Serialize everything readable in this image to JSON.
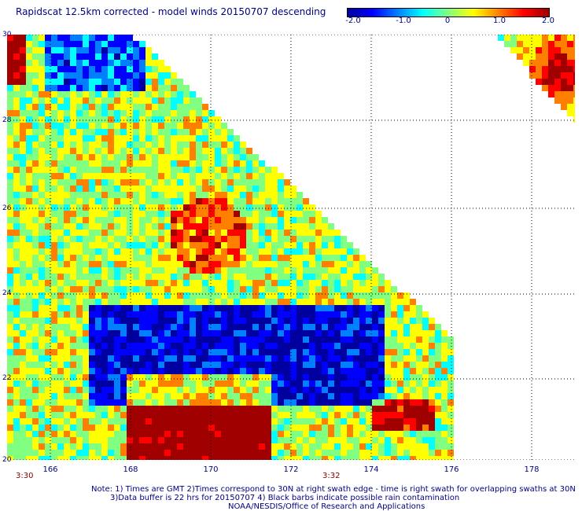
{
  "title": "Rapidscat 12.5km corrected - model winds 20150707 descending",
  "colorbar": {
    "min": -2.0,
    "max": 2.0,
    "tick_labels": [
      "-2.0",
      "-1.0",
      "0",
      "1.0",
      "2.0"
    ],
    "colors": [
      "#0000a0",
      "#0000ff",
      "#0080ff",
      "#00ffff",
      "#80ff80",
      "#ffff00",
      "#ff8000",
      "#ff0000",
      "#a00000"
    ]
  },
  "map": {
    "lon_range": [
      165,
      179
    ],
    "lat_range": [
      20,
      30
    ],
    "x_ticks": [
      "166",
      "168",
      "170",
      "172",
      "174",
      "176",
      "178"
    ],
    "y_ticks": [
      "30",
      "28",
      "26",
      "24",
      "22",
      "20"
    ],
    "time_labels": [
      "3:30",
      "3:32"
    ],
    "grid": true
  },
  "footer": {
    "line1": "Note: 1) Times are GMT 2)Times correspond to 30N at right swath edge - time is right swath for overlapping swaths at 30N",
    "line2": "3)Data buffer is 22 hrs for 20150707 4) Black barbs indicate possible rain contamination",
    "line3": "NOAA/NESDIS/Office of Research and Applications"
  }
}
